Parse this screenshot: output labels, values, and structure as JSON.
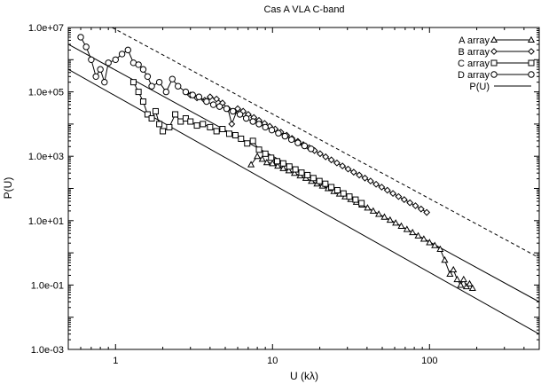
{
  "chart_data": {
    "type": "line",
    "title": "Cas A VLA C-band",
    "xlabel": "U (kλ)",
    "ylabel": "P(U)",
    "xscale": "log",
    "yscale": "log",
    "xlim": [
      0.5,
      500
    ],
    "ylim": [
      0.001,
      10000000
    ],
    "x_ticks": [
      1,
      10,
      100
    ],
    "x_tick_labels": [
      "1",
      "10",
      "100"
    ],
    "y_ticks": [
      0.001,
      0.1,
      10,
      1000,
      100000,
      10000000
    ],
    "y_tick_labels": [
      "1.0e-03",
      "1.0e-01",
      "1.0e+01",
      "1.0e+03",
      "1.0e+05",
      "1.0e+07"
    ],
    "grid": false,
    "legend_position": "top-right",
    "series": [
      {
        "name": "A array",
        "marker": "triangle",
        "points": [
          [
            7.3,
            550
          ],
          [
            8.0,
            1000
          ],
          [
            8.6,
            820
          ],
          [
            9.2,
            640
          ],
          [
            10.0,
            600
          ],
          [
            10.8,
            500
          ],
          [
            11.7,
            420
          ],
          [
            12.7,
            360
          ],
          [
            13.8,
            300
          ],
          [
            15.0,
            250
          ],
          [
            16.3,
            210
          ],
          [
            17.7,
            170
          ],
          [
            19.2,
            140
          ],
          [
            20.8,
            120
          ],
          [
            22.6,
            100
          ],
          [
            24.6,
            82
          ],
          [
            26.7,
            68
          ],
          [
            29.0,
            56
          ],
          [
            31.5,
            46
          ],
          [
            34.2,
            38
          ],
          [
            37.1,
            31
          ],
          [
            40.3,
            25
          ],
          [
            43.8,
            20
          ],
          [
            47.5,
            16
          ],
          [
            51.6,
            13
          ],
          [
            56.1,
            10.5
          ],
          [
            60.9,
            8.5
          ],
          [
            66.1,
            6.8
          ],
          [
            71.8,
            5.4
          ],
          [
            78.0,
            4.3
          ],
          [
            84.7,
            3.4
          ],
          [
            92.0,
            2.7
          ],
          [
            100,
            2.1
          ],
          [
            108,
            1.7
          ],
          [
            117,
            1.3
          ],
          [
            125,
            0.6
          ],
          [
            135,
            0.22
          ],
          [
            142,
            0.3
          ],
          [
            150,
            0.15
          ],
          [
            158,
            0.1
          ],
          [
            165,
            0.15
          ],
          [
            172,
            0.09
          ],
          [
            180,
            0.11
          ],
          [
            188,
            0.08
          ]
        ]
      },
      {
        "name": "B array",
        "marker": "diamond",
        "points": [
          [
            3.0,
            80000
          ],
          [
            3.3,
            65000
          ],
          [
            3.7,
            55000
          ],
          [
            4.0,
            70000
          ],
          [
            4.4,
            60000
          ],
          [
            4.8,
            45000
          ],
          [
            5.2,
            30000
          ],
          [
            5.5,
            10000
          ],
          [
            6.0,
            30000
          ],
          [
            6.5,
            25000
          ],
          [
            7.0,
            20000
          ],
          [
            7.6,
            16000
          ],
          [
            8.2,
            13000
          ],
          [
            8.9,
            10500
          ],
          [
            9.6,
            8500
          ],
          [
            10.4,
            7000
          ],
          [
            11.3,
            5600
          ],
          [
            12.3,
            4500
          ],
          [
            13.3,
            3600
          ],
          [
            14.5,
            2900
          ],
          [
            15.7,
            2300
          ],
          [
            17.1,
            1850
          ],
          [
            18.5,
            1500
          ],
          [
            20.1,
            1200
          ],
          [
            21.8,
            960
          ],
          [
            23.7,
            770
          ],
          [
            25.7,
            620
          ],
          [
            27.9,
            500
          ],
          [
            30.3,
            400
          ],
          [
            32.9,
            320
          ],
          [
            35.7,
            260
          ],
          [
            38.8,
            210
          ],
          [
            42.1,
            170
          ],
          [
            45.7,
            135
          ],
          [
            49.6,
            110
          ],
          [
            53.9,
            88
          ],
          [
            58.5,
            70
          ],
          [
            63.5,
            56
          ],
          [
            69.0,
            45
          ],
          [
            75.0,
            36
          ],
          [
            81.4,
            29
          ],
          [
            88.4,
            23
          ],
          [
            96.0,
            18
          ]
        ]
      },
      {
        "name": "C array",
        "marker": "square",
        "points": [
          [
            1.3,
            200000
          ],
          [
            1.4,
            100000
          ],
          [
            1.5,
            50000
          ],
          [
            1.6,
            20000
          ],
          [
            1.7,
            15000
          ],
          [
            1.8,
            25000
          ],
          [
            1.9,
            10000
          ],
          [
            2.0,
            6000
          ],
          [
            2.2,
            8000
          ],
          [
            2.4,
            20000
          ],
          [
            2.6,
            12000
          ],
          [
            2.8,
            15000
          ],
          [
            3.0,
            12000
          ],
          [
            3.3,
            9000
          ],
          [
            3.6,
            10000
          ],
          [
            4.0,
            8000
          ],
          [
            4.4,
            6000
          ],
          [
            4.8,
            7000
          ],
          [
            5.3,
            5000
          ],
          [
            5.8,
            4500
          ],
          [
            6.3,
            3500
          ],
          [
            6.9,
            2500
          ],
          [
            7.5,
            3000
          ],
          [
            8.2,
            1600
          ],
          [
            9.0,
            1200
          ],
          [
            9.8,
            900
          ],
          [
            10.7,
            700
          ],
          [
            11.7,
            600
          ],
          [
            12.8,
            480
          ],
          [
            14.0,
            390
          ],
          [
            15.3,
            310
          ],
          [
            16.7,
            260
          ],
          [
            18.2,
            210
          ],
          [
            19.9,
            170
          ],
          [
            21.7,
            140
          ],
          [
            23.7,
            110
          ],
          [
            25.9,
            88
          ],
          [
            28.3,
            70
          ],
          [
            30.9,
            56
          ],
          [
            33.8,
            45
          ],
          [
            36.9,
            35
          ]
        ]
      },
      {
        "name": "D array",
        "marker": "circle",
        "points": [
          [
            0.6,
            5000000
          ],
          [
            0.65,
            2500000
          ],
          [
            0.7,
            1000000
          ],
          [
            0.75,
            300000
          ],
          [
            0.8,
            500000
          ],
          [
            0.85,
            200000
          ],
          [
            0.9,
            800000
          ],
          [
            1.0,
            1000000
          ],
          [
            1.1,
            1500000
          ],
          [
            1.2,
            2000000
          ],
          [
            1.3,
            800000
          ],
          [
            1.4,
            700000
          ],
          [
            1.5,
            500000
          ],
          [
            1.6,
            300000
          ],
          [
            1.7,
            150000
          ],
          [
            1.9,
            200000
          ],
          [
            2.1,
            100000
          ],
          [
            2.3,
            250000
          ],
          [
            2.5,
            150000
          ],
          [
            2.8,
            100000
          ],
          [
            3.1,
            80000
          ],
          [
            3.4,
            70000
          ],
          [
            3.8,
            50000
          ],
          [
            4.2,
            40000
          ],
          [
            4.6,
            35000
          ],
          [
            5.1,
            30000
          ],
          [
            5.6,
            25000
          ],
          [
            6.2,
            20000
          ],
          [
            6.8,
            15000
          ],
          [
            7.5,
            12000
          ],
          [
            8.2,
            10000
          ],
          [
            9.0,
            8000
          ],
          [
            9.9,
            6500
          ],
          [
            10.9,
            5200
          ],
          [
            12.0,
            4200
          ],
          [
            13.2,
            3300
          ],
          [
            14.5,
            2600
          ],
          [
            16.0,
            2100
          ],
          [
            17.6,
            1700
          ]
        ]
      },
      {
        "name": "P(U)",
        "style": "solid-line",
        "lines": [
          {
            "points": [
              [
                0.5,
                3000000
              ],
              [
                500,
                0.03
              ]
            ]
          },
          {
            "points": [
              [
                0.5,
                500000
              ],
              [
                500,
                0.003
              ]
            ]
          }
        ],
        "dashed_line": {
          "points": [
            [
              0.95,
              10000000
            ],
            [
              500,
              0.7
            ]
          ]
        }
      }
    ]
  }
}
